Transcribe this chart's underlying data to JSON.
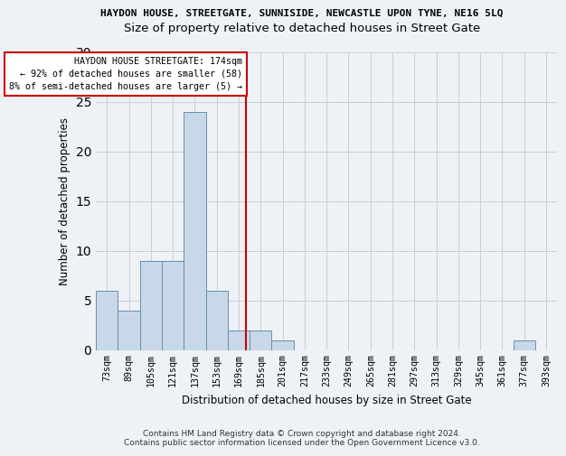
{
  "title": "HAYDON HOUSE, STREETGATE, SUNNISIDE, NEWCASTLE UPON TYNE, NE16 5LQ",
  "subtitle": "Size of property relative to detached houses in Street Gate",
  "xlabel": "Distribution of detached houses by size in Street Gate",
  "ylabel": "Number of detached properties",
  "bin_labels": [
    "73sqm",
    "89sqm",
    "105sqm",
    "121sqm",
    "137sqm",
    "153sqm",
    "169sqm",
    "185sqm",
    "201sqm",
    "217sqm",
    "233sqm",
    "249sqm",
    "265sqm",
    "281sqm",
    "297sqm",
    "313sqm",
    "329sqm",
    "345sqm",
    "361sqm",
    "377sqm",
    "393sqm"
  ],
  "bar_values": [
    6,
    4,
    9,
    9,
    24,
    6,
    2,
    2,
    1,
    0,
    0,
    0,
    0,
    0,
    0,
    0,
    0,
    0,
    0,
    1,
    0
  ],
  "bar_color": "#c8d8e8",
  "bar_edge_color": "#6090b0",
  "ylim": [
    0,
    30
  ],
  "annotation_line1": "HAYDON HOUSE STREETGATE: 174sqm",
  "annotation_line2": "← 92% of detached houses are smaller (58)",
  "annotation_line3": "8% of semi-detached houses are larger (5) →",
  "annotation_box_color": "#ffffff",
  "annotation_box_edge": "#cc0000",
  "line_color": "#cc0000",
  "footer": "Contains HM Land Registry data © Crown copyright and database right 2024.\nContains public sector information licensed under the Open Government Licence v3.0.",
  "bg_color": "#eef2f7",
  "title_fontsize": 8.0,
  "subtitle_fontsize": 9.5
}
